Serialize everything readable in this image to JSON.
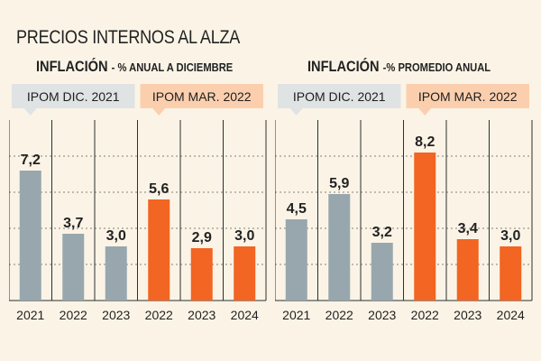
{
  "page_title": "PRECIOS INTERNOS AL ALZA",
  "colors": {
    "background": "#fbf4e6",
    "gray": "#98a7ae",
    "orange": "#f26522",
    "gray_tag": "#dfe3e4",
    "orange_tag": "#fbcfae"
  },
  "chart_data": [
    {
      "type": "bar",
      "title": "INFLACIÓN",
      "subtitle": "% ANUAL A DICIEMBRE",
      "groups": [
        {
          "label": "IPOM DIC. 2021",
          "color": "gray"
        },
        {
          "label": "IPOM MAR. 2022",
          "color": "orange"
        }
      ],
      "categories": [
        "2021",
        "2022",
        "2023",
        "2022",
        "2023",
        "2024"
      ],
      "values": [
        7.2,
        3.7,
        3.0,
        5.6,
        2.9,
        3.0
      ],
      "value_labels": [
        "7,2",
        "3,7",
        "3,0",
        "5,6",
        "2,9",
        "3,0"
      ],
      "bar_group": [
        0,
        0,
        0,
        1,
        1,
        1
      ],
      "ylim": [
        0,
        10
      ],
      "grid": true
    },
    {
      "type": "bar",
      "title": "INFLACIÓN",
      "subtitle": "% PROMEDIO ANUAL",
      "groups": [
        {
          "label": "IPOM DIC. 2021",
          "color": "gray"
        },
        {
          "label": "IPOM MAR. 2022",
          "color": "orange"
        }
      ],
      "categories": [
        "2021",
        "2022",
        "2023",
        "2022",
        "2023",
        "2024"
      ],
      "values": [
        4.5,
        5.9,
        3.2,
        8.2,
        3.4,
        3.0
      ],
      "value_labels": [
        "4,5",
        "5,9",
        "3,2",
        "8,2",
        "3,4",
        "3,0"
      ],
      "bar_group": [
        0,
        0,
        0,
        1,
        1,
        1
      ],
      "ylim": [
        0,
        10
      ],
      "grid": true
    }
  ]
}
